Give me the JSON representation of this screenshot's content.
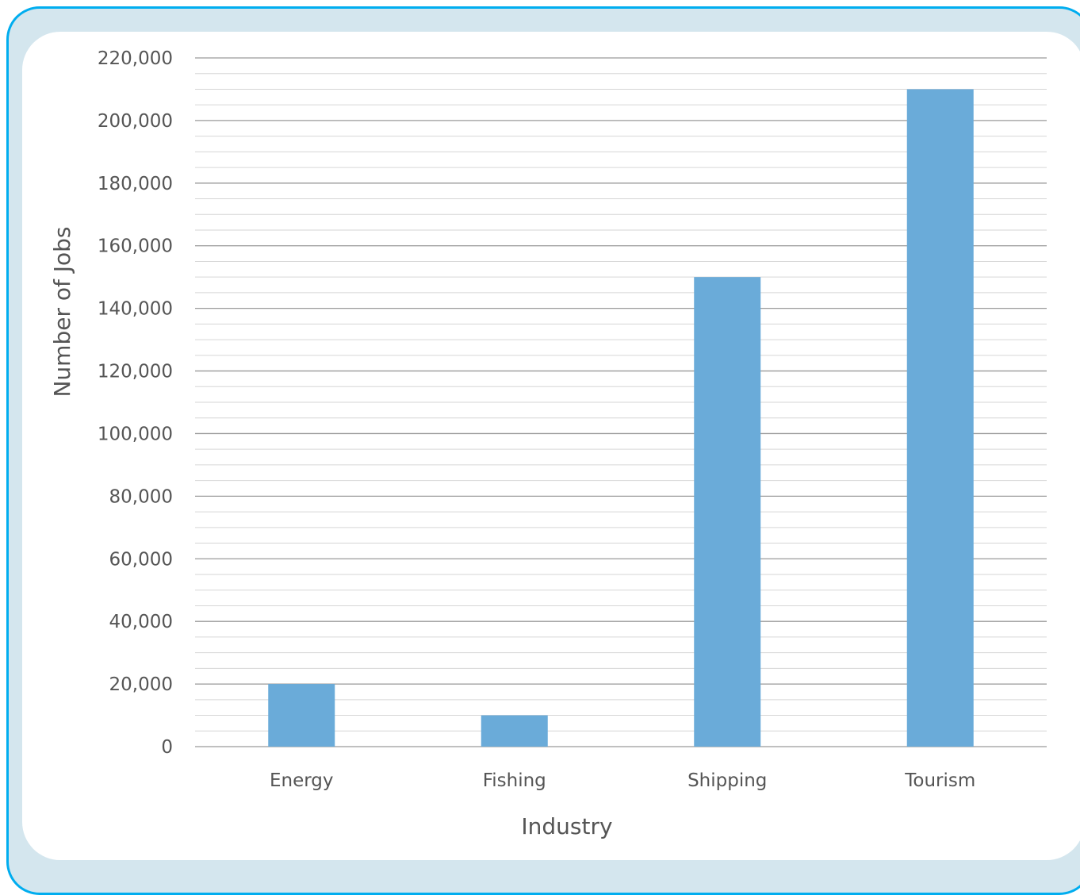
{
  "chart_data": {
    "type": "bar",
    "categories": [
      "Energy",
      "Fishing",
      "Shipping",
      "Tourism"
    ],
    "values": [
      20000,
      10000,
      150000,
      210000
    ],
    "title": "",
    "xlabel": "Industry",
    "ylabel": "Number of Jobs",
    "ylim": [
      0,
      220000
    ],
    "y_ticks": [
      0,
      20000,
      40000,
      60000,
      80000,
      100000,
      120000,
      140000,
      160000,
      180000,
      200000,
      220000
    ],
    "y_tick_labels": [
      "0",
      "20,000",
      "40,000",
      "60,000",
      "80,000",
      "100,000",
      "120,000",
      "140,000",
      "160,000",
      "180,000",
      "200,000",
      "220,000"
    ],
    "minor_gridline_step": 5000,
    "grid": true,
    "legend": "none",
    "bar_color": "#6aabd9",
    "frame_color": "#00adef",
    "frame_fill": "#d4e6ee"
  }
}
